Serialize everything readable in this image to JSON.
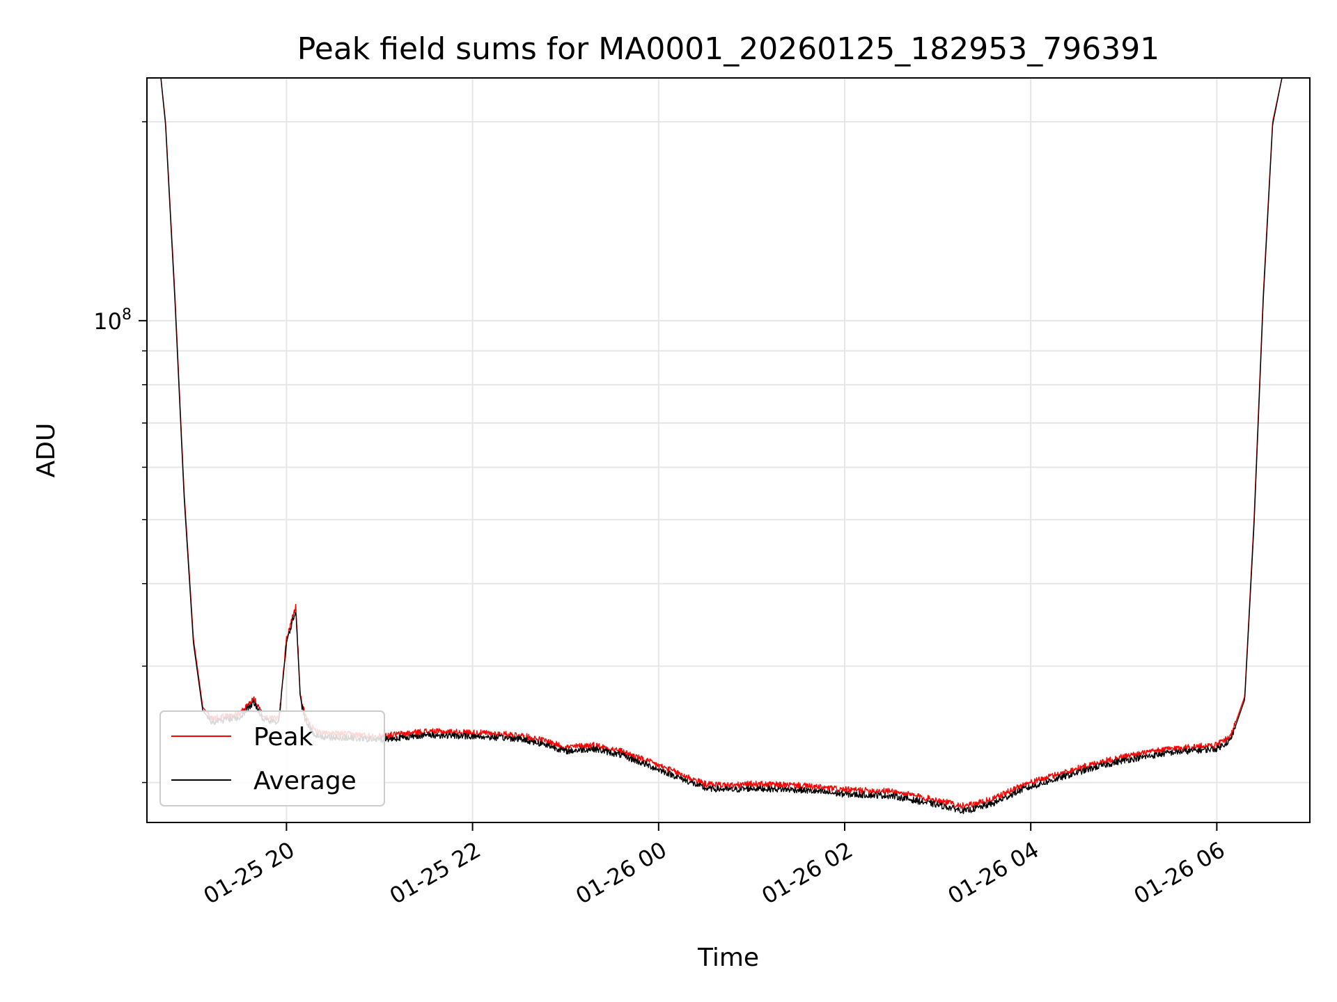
{
  "chart_data": {
    "type": "line",
    "title": "Peak field sums for MA0001_20260125_182953_796391",
    "xlabel": "Time",
    "ylabel": "ADU",
    "y_scale": "log",
    "ylim": [
      17400000,
      233000000
    ],
    "xlim_hours": [
      18.5,
      31.0
    ],
    "x_ticks": [
      {
        "label": "01-25 20",
        "hour": 20
      },
      {
        "label": "01-25 22",
        "hour": 22
      },
      {
        "label": "01-26 00",
        "hour": 24
      },
      {
        "label": "01-26 02",
        "hour": 26
      },
      {
        "label": "01-26 04",
        "hour": 28
      },
      {
        "label": "01-26 06",
        "hour": 30
      }
    ],
    "y_major_ticks": [
      {
        "value": 100000000,
        "base": "10",
        "exp": "8"
      }
    ],
    "y_minor_ticks": [
      20000000,
      30000000,
      40000000,
      50000000,
      60000000,
      70000000,
      80000000,
      90000000,
      200000000
    ],
    "grid": true,
    "legend_position": "lower-left",
    "legend": [
      "Peak",
      "Average"
    ],
    "series_colors": {
      "Peak": "#ff0000",
      "Average": "#000000"
    },
    "x_hours": [
      18.6,
      18.65,
      18.7,
      18.8,
      18.9,
      19.0,
      19.1,
      19.2,
      19.35,
      19.5,
      19.65,
      19.75,
      19.85,
      19.92,
      20.0,
      20.1,
      20.15,
      20.2,
      20.25,
      20.3,
      20.35,
      20.45,
      20.6,
      21.0,
      21.5,
      22.0,
      22.5,
      22.8,
      23.0,
      23.3,
      23.6,
      23.9,
      24.2,
      24.5,
      24.8,
      25.0,
      25.5,
      26.0,
      26.5,
      27.0,
      27.3,
      27.6,
      27.9,
      28.3,
      28.7,
      29.0,
      29.5,
      30.0,
      30.15,
      30.3,
      30.4,
      30.5,
      30.6,
      30.7,
      30.75,
      30.8,
      31.0
    ],
    "series": [
      {
        "name": "Peak",
        "values": [
          233000000,
          233000000,
          200000000,
          110000000,
          55000000,
          33000000,
          26000000,
          25000000,
          25200000,
          25400000,
          26800000,
          25200000,
          25000000,
          25100000,
          33000000,
          37000000,
          27000000,
          25200000,
          24500000,
          24000000,
          23800000,
          23700000,
          23700000,
          23500000,
          23900000,
          23800000,
          23600000,
          23100000,
          22600000,
          22800000,
          22300000,
          21500000,
          20700000,
          19900000,
          19800000,
          19900000,
          19800000,
          19500000,
          19400000,
          18800000,
          18400000,
          18900000,
          19800000,
          20600000,
          21400000,
          21900000,
          22500000,
          22800000,
          23500000,
          27000000,
          50000000,
          110000000,
          200000000,
          233000000,
          233000000,
          233000000,
          233000000
        ]
      },
      {
        "name": "Average",
        "values": [
          233000000,
          233000000,
          198000000,
          108000000,
          54000000,
          32500000,
          25700000,
          24700000,
          24900000,
          25100000,
          26500000,
          24900000,
          24700000,
          24800000,
          32500000,
          36500000,
          26700000,
          24900000,
          24200000,
          23700000,
          23500000,
          23400000,
          23400000,
          23200000,
          23600000,
          23500000,
          23300000,
          22800000,
          22300000,
          22500000,
          22000000,
          21200000,
          20400000,
          19600000,
          19500000,
          19600000,
          19500000,
          19200000,
          19100000,
          18500000,
          18100000,
          18600000,
          19500000,
          20300000,
          21100000,
          21600000,
          22200000,
          22500000,
          23200000,
          26700000,
          49000000,
          108000000,
          198000000,
          233000000,
          233000000,
          233000000,
          233000000
        ]
      }
    ]
  }
}
